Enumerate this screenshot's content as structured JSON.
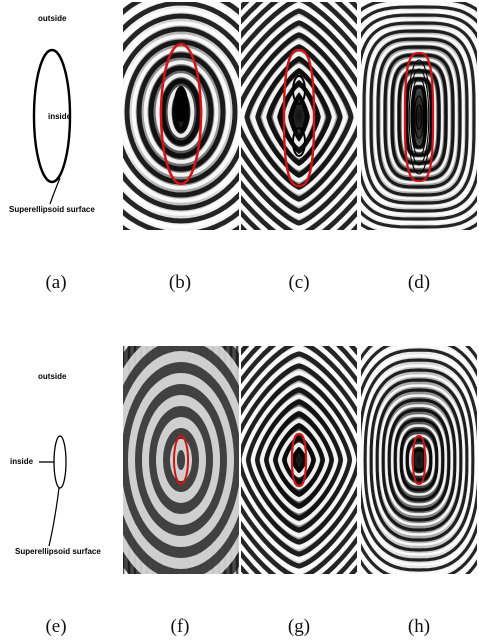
{
  "figure": {
    "row1": {
      "schematic": {
        "outside_label": "outside",
        "inside_label": "inside",
        "surface_label": "Superellipsoid surface"
      },
      "panels": [
        {
          "id": "b",
          "pattern": "smooth-ellipse"
        },
        {
          "id": "c",
          "pattern": "diamond-lobed"
        },
        {
          "id": "d",
          "pattern": "squarish-dense"
        }
      ],
      "labels": [
        "(a)",
        "(b)",
        "(c)",
        "(d)"
      ]
    },
    "row2": {
      "schematic": {
        "outside_label": "outside",
        "inside_label": "inside",
        "surface_label": "Superellipsoid surface"
      },
      "panels": [
        {
          "id": "f",
          "pattern": "dense-x"
        },
        {
          "id": "g",
          "pattern": "diamond-wide"
        },
        {
          "id": "h",
          "pattern": "pinched-wide"
        }
      ],
      "labels": [
        "(e)",
        "(f)",
        "(g)",
        "(h)"
      ]
    },
    "colors": {
      "surface_contour": "#d21414",
      "band_light": "#ffffff",
      "band_dark": "#000000"
    }
  }
}
